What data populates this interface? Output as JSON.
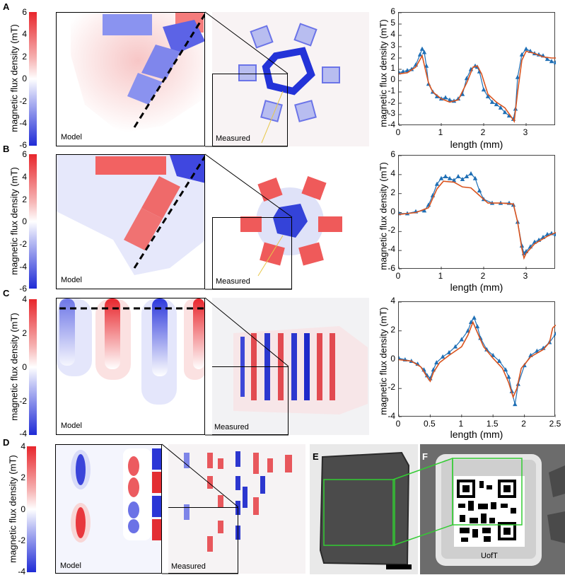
{
  "panel_letters": {
    "A": "A",
    "B": "B",
    "C": "C",
    "D": "D",
    "E": "E",
    "F": "F"
  },
  "colorbar_label": "magnetic flux density (mT)",
  "colorbar_ticks": {
    "A": [
      "6",
      "4",
      "2",
      "0",
      "-2",
      "-4",
      "-6"
    ],
    "B": [
      "6",
      "4",
      "2",
      "0",
      "-2",
      "-4",
      "-6"
    ],
    "C": [
      "4",
      "2",
      "0",
      "-2",
      "-4"
    ],
    "D": [
      "4",
      "2",
      "0",
      "-2",
      "-4"
    ]
  },
  "model_tag": "Model",
  "measured_tag": "Measured",
  "qr_caption": "UofT",
  "colors": {
    "red": "#e8262c",
    "blue": "#1f2bd6",
    "measured_marker": "#1f6fb5",
    "model_line": "#d9531e",
    "box_green": "#33cc33"
  },
  "line_plot_ylabel": "magnetic flux density (mT)",
  "line_plot_xlabel": "length (mm)",
  "chart_data": [
    {
      "type": "line",
      "panel": "A",
      "xlabel": "length (mm)",
      "ylabel": "magnetic flux density (mT)",
      "xlim": [
        0,
        3.7
      ],
      "ylim": [
        -4,
        6
      ],
      "xticks": [
        "0",
        "1",
        "2",
        "3"
      ],
      "yticks": [
        "6",
        "5",
        "4",
        "3",
        "2",
        "1",
        "0",
        "-1",
        "-2",
        "-3",
        "-4"
      ],
      "series": [
        {
          "marker": "triangle",
          "x": [
            0,
            0.1,
            0.2,
            0.3,
            0.4,
            0.5,
            0.55,
            0.6,
            0.65,
            0.7,
            0.8,
            0.9,
            1.0,
            1.1,
            1.2,
            1.3,
            1.4,
            1.5,
            1.6,
            1.7,
            1.8,
            1.85,
            1.9,
            2.0,
            2.1,
            2.2,
            2.3,
            2.4,
            2.5,
            2.6,
            2.7,
            2.75,
            2.8,
            2.9,
            3.0,
            3.1,
            3.2,
            3.3,
            3.4,
            3.5,
            3.6,
            3.7
          ],
          "y": [
            0.7,
            0.8,
            0.9,
            1.0,
            1.4,
            2.3,
            2.8,
            2.5,
            1.3,
            -0.3,
            -1.0,
            -1.4,
            -1.6,
            -1.5,
            -1.7,
            -1.8,
            -1.6,
            -1.2,
            0.2,
            1.0,
            1.3,
            1.2,
            0.8,
            -0.8,
            -1.4,
            -1.9,
            -2.1,
            -2.4,
            -2.8,
            -3.1,
            -3.4,
            -2.5,
            0.3,
            2.3,
            2.8,
            2.6,
            2.4,
            2.3,
            2.2,
            1.9,
            1.7,
            1.6
          ]
        },
        {
          "marker": "line",
          "x": [
            0,
            0.2,
            0.4,
            0.55,
            0.7,
            0.8,
            1.0,
            1.2,
            1.4,
            1.6,
            1.75,
            1.85,
            1.95,
            2.1,
            2.3,
            2.5,
            2.65,
            2.72,
            2.8,
            2.9,
            3.0,
            3.2,
            3.4,
            3.6,
            3.7
          ],
          "y": [
            0.6,
            0.7,
            1.2,
            2.2,
            -0.2,
            -1.0,
            -1.6,
            -1.9,
            -1.7,
            -0.2,
            1.2,
            1.3,
            0.6,
            -1.2,
            -1.9,
            -2.4,
            -3.2,
            -3.6,
            -1.0,
            1.8,
            2.6,
            2.4,
            2.1,
            2.0,
            2.0
          ]
        }
      ]
    },
    {
      "type": "line",
      "panel": "B",
      "xlabel": "length (mm)",
      "ylabel": "magnetic flux density (mT)",
      "xlim": [
        0,
        3.7
      ],
      "ylim": [
        -6,
        6
      ],
      "xticks": [
        "0",
        "1",
        "2",
        "3"
      ],
      "yticks": [
        "6",
        "4",
        "2",
        "0",
        "-2",
        "-4",
        "-6"
      ],
      "series": [
        {
          "marker": "triangle",
          "x": [
            0,
            0.2,
            0.4,
            0.6,
            0.7,
            0.8,
            0.9,
            1.0,
            1.1,
            1.2,
            1.3,
            1.4,
            1.5,
            1.6,
            1.7,
            1.8,
            1.9,
            2.0,
            2.2,
            2.4,
            2.6,
            2.7,
            2.8,
            2.9,
            2.95,
            3.0,
            3.1,
            3.2,
            3.3,
            3.4,
            3.5,
            3.6,
            3.7
          ],
          "y": [
            -0.1,
            -0.1,
            0.1,
            0.2,
            0.8,
            1.8,
            3.0,
            3.6,
            3.8,
            3.6,
            3.4,
            3.8,
            3.5,
            3.8,
            4.1,
            3.6,
            2.3,
            1.4,
            1.0,
            1.0,
            1.0,
            0.8,
            -1.0,
            -3.5,
            -4.3,
            -4.1,
            -3.6,
            -3.1,
            -2.9,
            -2.6,
            -2.3,
            -2.2,
            -2.3
          ]
        },
        {
          "marker": "line",
          "x": [
            0,
            0.4,
            0.7,
            0.9,
            1.05,
            1.3,
            1.5,
            1.7,
            1.9,
            2.1,
            2.4,
            2.7,
            2.8,
            2.9,
            2.95,
            3.0,
            3.2,
            3.5,
            3.7
          ],
          "y": [
            -0.2,
            0.0,
            0.5,
            2.5,
            3.3,
            3.2,
            2.7,
            2.6,
            1.8,
            1.0,
            1.0,
            0.9,
            -1.0,
            -3.8,
            -4.8,
            -4.3,
            -3.3,
            -2.5,
            -2.1
          ]
        }
      ]
    },
    {
      "type": "line",
      "panel": "C",
      "xlabel": "length (mm)",
      "ylabel": "magnetic flux density (mT)",
      "xlim": [
        0,
        2.5
      ],
      "ylim": [
        -4,
        4
      ],
      "xticks": [
        "0",
        "0.5",
        "1",
        "1.5",
        "2",
        "2.5"
      ],
      "yticks": [
        "4",
        "2",
        "0",
        "-2",
        "-4"
      ],
      "series": [
        {
          "marker": "triangle",
          "x": [
            0,
            0.1,
            0.2,
            0.3,
            0.4,
            0.45,
            0.5,
            0.55,
            0.6,
            0.7,
            0.8,
            0.9,
            1.0,
            1.1,
            1.15,
            1.2,
            1.25,
            1.3,
            1.4,
            1.5,
            1.6,
            1.7,
            1.75,
            1.8,
            1.85,
            1.9,
            2.0,
            2.1,
            2.2,
            2.3,
            2.4,
            2.5
          ],
          "y": [
            0.1,
            0.0,
            -0.1,
            -0.3,
            -0.7,
            -1.1,
            -1.3,
            -0.7,
            -0.2,
            0.2,
            0.5,
            0.9,
            1.4,
            2.0,
            2.6,
            2.9,
            2.3,
            1.5,
            0.7,
            0.3,
            -0.1,
            -0.7,
            -1.2,
            -2.2,
            -3.1,
            -1.7,
            -0.4,
            0.3,
            0.6,
            0.8,
            1.2,
            1.8
          ]
        },
        {
          "marker": "line",
          "x": [
            0,
            0.2,
            0.35,
            0.45,
            0.5,
            0.55,
            0.65,
            0.8,
            1.0,
            1.1,
            1.18,
            1.25,
            1.35,
            1.5,
            1.65,
            1.75,
            1.82,
            1.88,
            1.95,
            2.1,
            2.3,
            2.4,
            2.45,
            2.5
          ],
          "y": [
            0.0,
            -0.1,
            -0.5,
            -1.2,
            -1.5,
            -0.9,
            -0.2,
            0.3,
            0.9,
            1.7,
            2.6,
            1.9,
            0.9,
            0.1,
            -0.6,
            -1.6,
            -2.6,
            -2.0,
            -0.6,
            0.2,
            0.7,
            1.2,
            2.2,
            2.4
          ]
        }
      ]
    }
  ]
}
